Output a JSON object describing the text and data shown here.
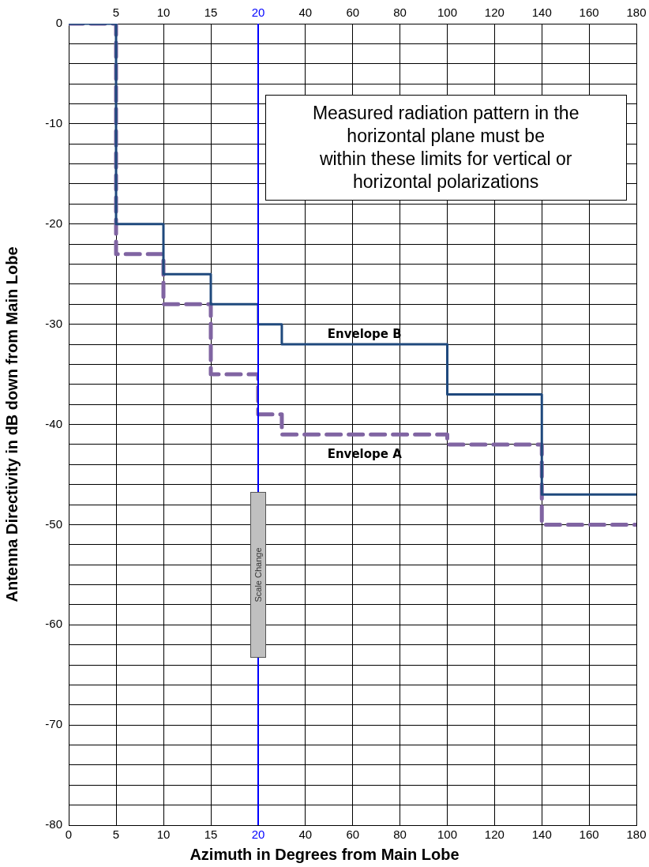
{
  "chart_data": [
    {
      "type": "step",
      "ylabel": "Antenna Directivity in dB down from Main Lobe",
      "xlim": [
        0,
        20
      ],
      "xticks": [
        0,
        5,
        10,
        15,
        20
      ],
      "x2lim": [
        0,
        20
      ],
      "x2ticks": [
        5,
        10,
        15,
        20
      ],
      "ylim": [
        -80,
        0
      ],
      "yticks": [
        -80,
        {
          "value": -78,
          "label": null
        },
        {
          "value": -76,
          "label": null
        },
        {
          "value": -74,
          "label": null
        },
        {
          "value": -72,
          "label": null
        },
        -70,
        {
          "value": -68,
          "label": null
        },
        {
          "value": -66,
          "label": null
        },
        {
          "value": -64,
          "label": null
        },
        {
          "value": -62,
          "label": null
        },
        -60,
        {
          "value": -58,
          "label": null
        },
        {
          "value": -56,
          "label": null
        },
        {
          "value": -54,
          "label": null
        },
        {
          "value": -52,
          "label": null
        },
        -50,
        {
          "value": -48,
          "label": null
        },
        {
          "value": -46,
          "label": null
        },
        {
          "value": -44,
          "label": null
        },
        {
          "value": -42,
          "label": null
        },
        -40,
        {
          "value": -38,
          "label": null
        },
        {
          "value": -36,
          "label": null
        },
        {
          "value": -34,
          "label": null
        },
        {
          "value": -32,
          "label": null
        },
        -30,
        {
          "value": -28,
          "label": null
        },
        {
          "value": -26,
          "label": null
        },
        {
          "value": -24,
          "label": null
        },
        {
          "value": -22,
          "label": null
        },
        -20,
        {
          "value": -18,
          "label": null
        },
        {
          "value": -16,
          "label": null
        },
        {
          "value": -14,
          "label": null
        },
        {
          "value": -12,
          "label": null
        },
        -10,
        {
          "value": -8,
          "label": null
        },
        {
          "value": -6,
          "label": null
        },
        {
          "value": -4,
          "label": null
        },
        {
          "value": -2,
          "label": null
        },
        0
      ],
      "grid": true,
      "legend": false,
      "marker": "none",
      "series": [
        {
          "color": "#1f497d",
          "line_style": "solid",
          "x": [
            0,
            5,
            10,
            15,
            20
          ],
          "values": [
            0,
            -20,
            -25,
            -28,
            -30
          ]
        },
        {
          "color": "#8064a2",
          "line_style": "dashed",
          "x": [
            0,
            5,
            10,
            15,
            20
          ],
          "values": [
            0,
            -23,
            -28,
            -35,
            -39
          ]
        }
      ],
      "ref_lines": [
        {
          "axis": "x",
          "value": 20,
          "color": "#0000ff"
        }
      ],
      "annotations": [
        {
          "text": "Scale Change",
          "x": 20,
          "y": -55
        }
      ]
    },
    {
      "type": "step",
      "xlabel": "Azimuth in Degrees from Main Lobe",
      "xlim": [
        20,
        180
      ],
      "xticks": [
        40,
        60,
        80,
        100,
        120,
        140,
        160,
        180
      ],
      "x2lim": [
        20,
        180
      ],
      "x2ticks": [
        40,
        60,
        80,
        100,
        120,
        140,
        160,
        180
      ],
      "ylim": [
        -80,
        0
      ],
      "yticks": [
        -80,
        {
          "value": -78,
          "label": null
        },
        {
          "value": -76,
          "label": null
        },
        {
          "value": -74,
          "label": null
        },
        {
          "value": -72,
          "label": null
        },
        -70,
        {
          "value": -68,
          "label": null
        },
        {
          "value": -66,
          "label": null
        },
        {
          "value": -64,
          "label": null
        },
        {
          "value": -62,
          "label": null
        },
        -60,
        {
          "value": -58,
          "label": null
        },
        {
          "value": -56,
          "label": null
        },
        {
          "value": -54,
          "label": null
        },
        {
          "value": -52,
          "label": null
        },
        -50,
        {
          "value": -48,
          "label": null
        },
        {
          "value": -46,
          "label": null
        },
        {
          "value": -44,
          "label": null
        },
        {
          "value": -42,
          "label": null
        },
        -40,
        {
          "value": -38,
          "label": null
        },
        {
          "value": -36,
          "label": null
        },
        {
          "value": -34,
          "label": null
        },
        {
          "value": -32,
          "label": null
        },
        -30,
        {
          "value": -28,
          "label": null
        },
        {
          "value": -26,
          "label": null
        },
        {
          "value": -24,
          "label": null
        },
        {
          "value": -22,
          "label": null
        },
        -20,
        {
          "value": -18,
          "label": null
        },
        {
          "value": -16,
          "label": null
        },
        {
          "value": -14,
          "label": null
        },
        {
          "value": -12,
          "label": null
        },
        -10,
        {
          "value": -8,
          "label": null
        },
        {
          "value": -6,
          "label": null
        },
        {
          "value": -4,
          "label": null
        },
        {
          "value": -2,
          "label": null
        },
        0
      ],
      "tick_labels": "x",
      "grid": true,
      "legend": false,
      "marker": "none",
      "series": [
        {
          "name": "Envelope B",
          "color": "#1f497d",
          "line_style": "solid",
          "x": [
            20,
            30,
            100,
            140,
            180
          ],
          "values": [
            -30,
            -32,
            -37,
            -47,
            -47
          ]
        },
        {
          "name": "Envelope A",
          "color": "#8064a2",
          "line_style": "dashed",
          "x": [
            20,
            30,
            100,
            140,
            180
          ],
          "values": [
            -39,
            -41,
            -42,
            -50,
            -50
          ]
        }
      ],
      "annotations": [
        "Measured radiation pattern in the\nhorizontal plane must be\nwithin these limits for vertical or\nhorizontal polarizations"
      ]
    }
  ]
}
